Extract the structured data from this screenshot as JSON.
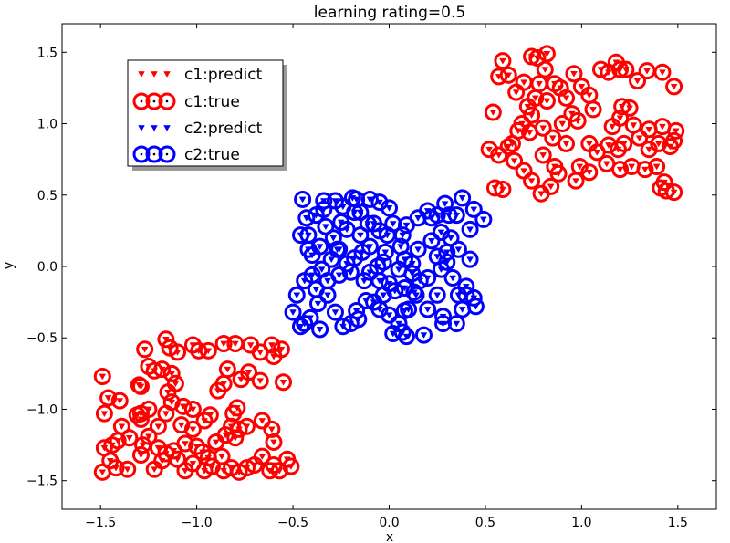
{
  "chart_data": {
    "type": "scatter",
    "title": "learning rating=0.5",
    "xlabel": "x",
    "ylabel": "y",
    "xlim": [
      -1.7,
      1.7
    ],
    "ylim": [
      -1.7,
      1.7
    ],
    "xticks": [
      "−1.5",
      "−1.0",
      "−0.5",
      "0.0",
      "0.5",
      "1.0",
      "1.5"
    ],
    "yticks": [
      "−1.5",
      "−1.0",
      "−0.5",
      "0.0",
      "0.5",
      "1.0",
      "1.5"
    ],
    "xtick_values": [
      -1.5,
      -1.0,
      -0.5,
      0.0,
      0.5,
      1.0,
      1.5
    ],
    "ytick_values": [
      -1.5,
      -1.0,
      -0.5,
      0.0,
      0.5,
      1.0,
      1.5
    ],
    "grid": false,
    "legend_position": "upper-left",
    "series": [
      {
        "name": "c1:predict",
        "marker": "triangle-down",
        "color": "#ff0000",
        "ref": "c1"
      },
      {
        "name": "c1:true",
        "marker": "circle-open",
        "color": "#ff0000",
        "ref": "c1"
      },
      {
        "name": "c2:predict",
        "marker": "triangle-down",
        "color": "#0000ff",
        "ref": "c2"
      },
      {
        "name": "c2:true",
        "marker": "circle-open",
        "color": "#0000ff",
        "ref": "c2"
      }
    ],
    "points": {
      "c1": [
        [
          0.57,
          1.33
        ],
        [
          0.59,
          1.44
        ],
        [
          0.54,
          1.08
        ],
        [
          0.62,
          1.34
        ],
        [
          0.66,
          1.22
        ],
        [
          0.7,
          1.29
        ],
        [
          0.74,
          1.47
        ],
        [
          0.77,
          1.46
        ],
        [
          0.82,
          1.49
        ],
        [
          0.81,
          1.38
        ],
        [
          0.78,
          1.28
        ],
        [
          0.72,
          1.12
        ],
        [
          0.69,
          1.0
        ],
        [
          0.74,
          1.06
        ],
        [
          0.76,
          1.18
        ],
        [
          0.82,
          1.16
        ],
        [
          0.86,
          1.28
        ],
        [
          0.89,
          1.25
        ],
        [
          0.92,
          1.18
        ],
        [
          0.96,
          1.35
        ],
        [
          1.0,
          1.26
        ],
        [
          1.04,
          1.2
        ],
        [
          1.06,
          1.1
        ],
        [
          1.1,
          1.38
        ],
        [
          1.14,
          1.36
        ],
        [
          1.18,
          1.43
        ],
        [
          1.2,
          1.38
        ],
        [
          1.23,
          1.38
        ],
        [
          1.29,
          1.3
        ],
        [
          1.34,
          1.37
        ],
        [
          1.42,
          1.36
        ],
        [
          1.48,
          1.26
        ],
        [
          1.21,
          1.12
        ],
        [
          1.25,
          1.11
        ],
        [
          1.2,
          1.04
        ],
        [
          1.16,
          0.98
        ],
        [
          1.27,
          0.99
        ],
        [
          1.35,
          0.96
        ],
        [
          1.42,
          0.98
        ],
        [
          1.49,
          0.95
        ],
        [
          1.48,
          0.88
        ],
        [
          1.46,
          0.84
        ],
        [
          1.4,
          0.86
        ],
        [
          1.35,
          0.82
        ],
        [
          1.3,
          0.9
        ],
        [
          1.22,
          0.86
        ],
        [
          1.19,
          0.82
        ],
        [
          1.14,
          0.85
        ],
        [
          1.08,
          0.8
        ],
        [
          1.04,
          0.86
        ],
        [
          0.99,
          0.7
        ],
        [
          1.04,
          0.66
        ],
        [
          1.13,
          0.72
        ],
        [
          1.2,
          0.68
        ],
        [
          1.26,
          0.7
        ],
        [
          1.33,
          0.68
        ],
        [
          1.39,
          0.7
        ],
        [
          1.43,
          0.59
        ],
        [
          1.41,
          0.55
        ],
        [
          1.44,
          0.53
        ],
        [
          1.48,
          0.52
        ],
        [
          0.97,
          0.6
        ],
        [
          0.88,
          0.65
        ],
        [
          0.84,
          0.56
        ],
        [
          0.79,
          0.51
        ],
        [
          0.74,
          0.6
        ],
        [
          0.7,
          0.67
        ],
        [
          0.65,
          0.74
        ],
        [
          0.59,
          0.54
        ],
        [
          0.55,
          0.55
        ],
        [
          0.52,
          0.82
        ],
        [
          0.57,
          0.78
        ],
        [
          0.62,
          0.84
        ],
        [
          0.64,
          0.86
        ],
        [
          0.67,
          0.95
        ],
        [
          0.73,
          0.94
        ],
        [
          0.8,
          0.97
        ],
        [
          0.85,
          0.9
        ],
        [
          0.9,
          1.0
        ],
        [
          0.95,
          1.07
        ],
        [
          0.98,
          1.02
        ],
        [
          0.92,
          0.86
        ],
        [
          0.8,
          0.78
        ],
        [
          0.86,
          0.7
        ],
        [
          -1.49,
          -0.77
        ],
        [
          -1.48,
          -1.03
        ],
        [
          -1.46,
          -0.92
        ],
        [
          -1.4,
          -0.94
        ],
        [
          -1.3,
          -0.83
        ],
        [
          -1.29,
          -0.84
        ],
        [
          -1.27,
          -0.58
        ],
        [
          -1.25,
          -0.7
        ],
        [
          -1.22,
          -0.73
        ],
        [
          -1.16,
          -0.51
        ],
        [
          -1.14,
          -0.57
        ],
        [
          -1.1,
          -0.6
        ],
        [
          -1.02,
          -0.55
        ],
        [
          -0.99,
          -0.59
        ],
        [
          -0.94,
          -0.59
        ],
        [
          -0.86,
          -0.54
        ],
        [
          -0.8,
          -0.54
        ],
        [
          -0.72,
          -0.55
        ],
        [
          -0.67,
          -0.6
        ],
        [
          -0.61,
          -0.55
        ],
        [
          -0.6,
          -0.63
        ],
        [
          -0.56,
          -0.58
        ],
        [
          -0.55,
          -0.81
        ],
        [
          -0.67,
          -0.8
        ],
        [
          -0.73,
          -0.74
        ],
        [
          -0.84,
          -0.72
        ],
        [
          -0.86,
          -0.82
        ],
        [
          -0.89,
          -0.87
        ],
        [
          -0.77,
          -0.79
        ],
        [
          -1.18,
          -0.72
        ],
        [
          -1.13,
          -0.75
        ],
        [
          -1.11,
          -0.82
        ],
        [
          -1.15,
          -0.88
        ],
        [
          -1.13,
          -0.95
        ],
        [
          -1.07,
          -0.98
        ],
        [
          -1.02,
          -1.0
        ],
        [
          -1.25,
          -1.0
        ],
        [
          -1.29,
          -1.03
        ],
        [
          -1.29,
          -1.07
        ],
        [
          -1.31,
          -1.04
        ],
        [
          -1.2,
          -1.12
        ],
        [
          -1.16,
          -1.03
        ],
        [
          -1.08,
          -1.11
        ],
        [
          -1.02,
          -1.14
        ],
        [
          -0.96,
          -1.08
        ],
        [
          -0.93,
          -1.04
        ],
        [
          -0.81,
          -1.03
        ],
        [
          -0.79,
          -0.99
        ],
        [
          -0.82,
          -1.12
        ],
        [
          -0.78,
          -1.14
        ],
        [
          -0.74,
          -1.12
        ],
        [
          -0.66,
          -1.08
        ],
        [
          -0.61,
          -1.14
        ],
        [
          -0.6,
          -1.23
        ],
        [
          -1.39,
          -1.12
        ],
        [
          -1.48,
          -1.27
        ],
        [
          -1.44,
          -1.25
        ],
        [
          -1.41,
          -1.22
        ],
        [
          -1.35,
          -1.2
        ],
        [
          -1.28,
          -1.25
        ],
        [
          -1.25,
          -1.19
        ],
        [
          -1.2,
          -1.27
        ],
        [
          -1.16,
          -1.31
        ],
        [
          -1.12,
          -1.29
        ],
        [
          -1.06,
          -1.24
        ],
        [
          -1.0,
          -1.26
        ],
        [
          -0.97,
          -1.3
        ],
        [
          -0.9,
          -1.23
        ],
        [
          -0.85,
          -1.18
        ],
        [
          -0.8,
          -1.2
        ],
        [
          -0.87,
          -1.33
        ],
        [
          -0.82,
          -1.41
        ],
        [
          -0.78,
          -1.44
        ],
        [
          -0.74,
          -1.41
        ],
        [
          -0.7,
          -1.39
        ],
        [
          -0.66,
          -1.33
        ],
        [
          -0.6,
          -1.39
        ],
        [
          -0.57,
          -1.43
        ],
        [
          -0.53,
          -1.35
        ],
        [
          -0.51,
          -1.4
        ],
        [
          -0.62,
          -1.43
        ],
        [
          -0.92,
          -1.4
        ],
        [
          -0.96,
          -1.43
        ],
        [
          -1.02,
          -1.38
        ],
        [
          -1.06,
          -1.43
        ],
        [
          -1.1,
          -1.35
        ],
        [
          -1.18,
          -1.36
        ],
        [
          -1.22,
          -1.42
        ],
        [
          -1.29,
          -1.32
        ],
        [
          -1.36,
          -1.42
        ],
        [
          -1.42,
          -1.41
        ],
        [
          -1.49,
          -1.44
        ],
        [
          -1.45,
          -1.36
        ],
        [
          -0.94,
          -1.34
        ],
        [
          -0.86,
          -1.43
        ]
      ],
      "c2": [
        [
          -0.45,
          0.47
        ],
        [
          -0.43,
          0.34
        ],
        [
          -0.38,
          0.36
        ],
        [
          -0.34,
          0.46
        ],
        [
          -0.28,
          0.46
        ],
        [
          -0.24,
          0.42
        ],
        [
          -0.19,
          0.48
        ],
        [
          -0.17,
          0.47
        ],
        [
          -0.1,
          0.47
        ],
        [
          -0.05,
          0.45
        ],
        [
          0.0,
          0.41
        ],
        [
          -0.42,
          0.22
        ],
        [
          -0.46,
          0.22
        ],
        [
          -0.4,
          0.08
        ],
        [
          -0.36,
          0.14
        ],
        [
          -0.33,
          0.28
        ],
        [
          -0.29,
          0.2
        ],
        [
          -0.27,
          0.12
        ],
        [
          -0.26,
          0.12
        ],
        [
          -0.22,
          0.26
        ],
        [
          -0.18,
          0.38
        ],
        [
          -0.15,
          0.38
        ],
        [
          -0.11,
          0.3
        ],
        [
          -0.08,
          0.3
        ],
        [
          -0.05,
          0.25
        ],
        [
          -0.01,
          0.22
        ],
        [
          0.02,
          0.3
        ],
        [
          0.07,
          0.22
        ],
        [
          0.09,
          0.29
        ],
        [
          0.15,
          0.34
        ],
        [
          0.2,
          0.39
        ],
        [
          0.22,
          0.34
        ],
        [
          0.25,
          0.36
        ],
        [
          0.29,
          0.44
        ],
        [
          0.31,
          0.36
        ],
        [
          0.35,
          0.36
        ],
        [
          0.38,
          0.48
        ],
        [
          0.42,
          0.26
        ],
        [
          0.44,
          0.4
        ],
        [
          0.49,
          0.33
        ],
        [
          0.27,
          0.24
        ],
        [
          0.32,
          0.2
        ],
        [
          0.3,
          0.1
        ],
        [
          0.22,
          0.18
        ],
        [
          0.15,
          0.12
        ],
        [
          0.08,
          0.05
        ],
        [
          0.05,
          -0.02
        ],
        [
          -0.02,
          0.1
        ],
        [
          -0.06,
          0.0
        ],
        [
          -0.1,
          0.14
        ],
        [
          -0.14,
          0.1
        ],
        [
          -0.18,
          0.06
        ],
        [
          -0.22,
          0.02
        ],
        [
          -0.3,
          0.05
        ],
        [
          -0.35,
          -0.02
        ],
        [
          -0.4,
          -0.06
        ],
        [
          -0.44,
          -0.1
        ],
        [
          -0.38,
          -0.16
        ],
        [
          -0.32,
          -0.1
        ],
        [
          -0.26,
          -0.06
        ],
        [
          -0.2,
          -0.04
        ],
        [
          -0.13,
          -0.1
        ],
        [
          -0.1,
          -0.04
        ],
        [
          -0.03,
          0.03
        ],
        [
          0.0,
          -0.12
        ],
        [
          0.03,
          -0.17
        ],
        [
          0.08,
          -0.15
        ],
        [
          0.12,
          -0.05
        ],
        [
          0.13,
          -0.18
        ],
        [
          0.2,
          -0.08
        ],
        [
          0.27,
          -0.02
        ],
        [
          0.3,
          0.03
        ],
        [
          0.33,
          -0.08
        ],
        [
          0.36,
          -0.2
        ],
        [
          0.4,
          -0.2
        ],
        [
          0.44,
          -0.22
        ],
        [
          0.45,
          -0.28
        ],
        [
          0.38,
          -0.3
        ],
        [
          0.35,
          -0.4
        ],
        [
          0.28,
          -0.4
        ],
        [
          0.25,
          -0.2
        ],
        [
          0.2,
          -0.3
        ],
        [
          0.18,
          -0.48
        ],
        [
          0.08,
          -0.31
        ],
        [
          0.05,
          -0.4
        ],
        [
          0.02,
          -0.47
        ],
        [
          0.0,
          -0.34
        ],
        [
          -0.03,
          -0.2
        ],
        [
          -0.05,
          -0.1
        ],
        [
          -0.08,
          -0.25
        ],
        [
          -0.12,
          -0.24
        ],
        [
          -0.17,
          -0.31
        ],
        [
          -0.2,
          -0.4
        ],
        [
          -0.24,
          -0.42
        ],
        [
          -0.28,
          -0.32
        ],
        [
          -0.32,
          -0.2
        ],
        [
          -0.37,
          -0.26
        ],
        [
          -0.41,
          -0.36
        ],
        [
          -0.44,
          -0.4
        ],
        [
          -0.48,
          -0.2
        ],
        [
          -0.5,
          -0.32
        ],
        [
          -0.46,
          -0.42
        ],
        [
          -0.36,
          -0.44
        ],
        [
          -0.16,
          -0.37
        ],
        [
          0.07,
          -0.46
        ],
        [
          0.1,
          -0.3
        ],
        [
          0.14,
          -0.2
        ],
        [
          0.16,
          -0.1
        ],
        [
          0.28,
          -0.35
        ],
        [
          0.4,
          -0.14
        ],
        [
          0.42,
          0.05
        ],
        [
          0.36,
          0.12
        ],
        [
          0.25,
          0.07
        ],
        [
          0.12,
          0.02
        ],
        [
          0.06,
          0.14
        ],
        [
          -0.15,
          0.22
        ],
        [
          -0.25,
          0.31
        ],
        [
          -0.34,
          0.4
        ],
        [
          -0.42,
          0.12
        ],
        [
          -0.05,
          -0.3
        ],
        [
          0.09,
          -0.49
        ]
      ]
    }
  }
}
